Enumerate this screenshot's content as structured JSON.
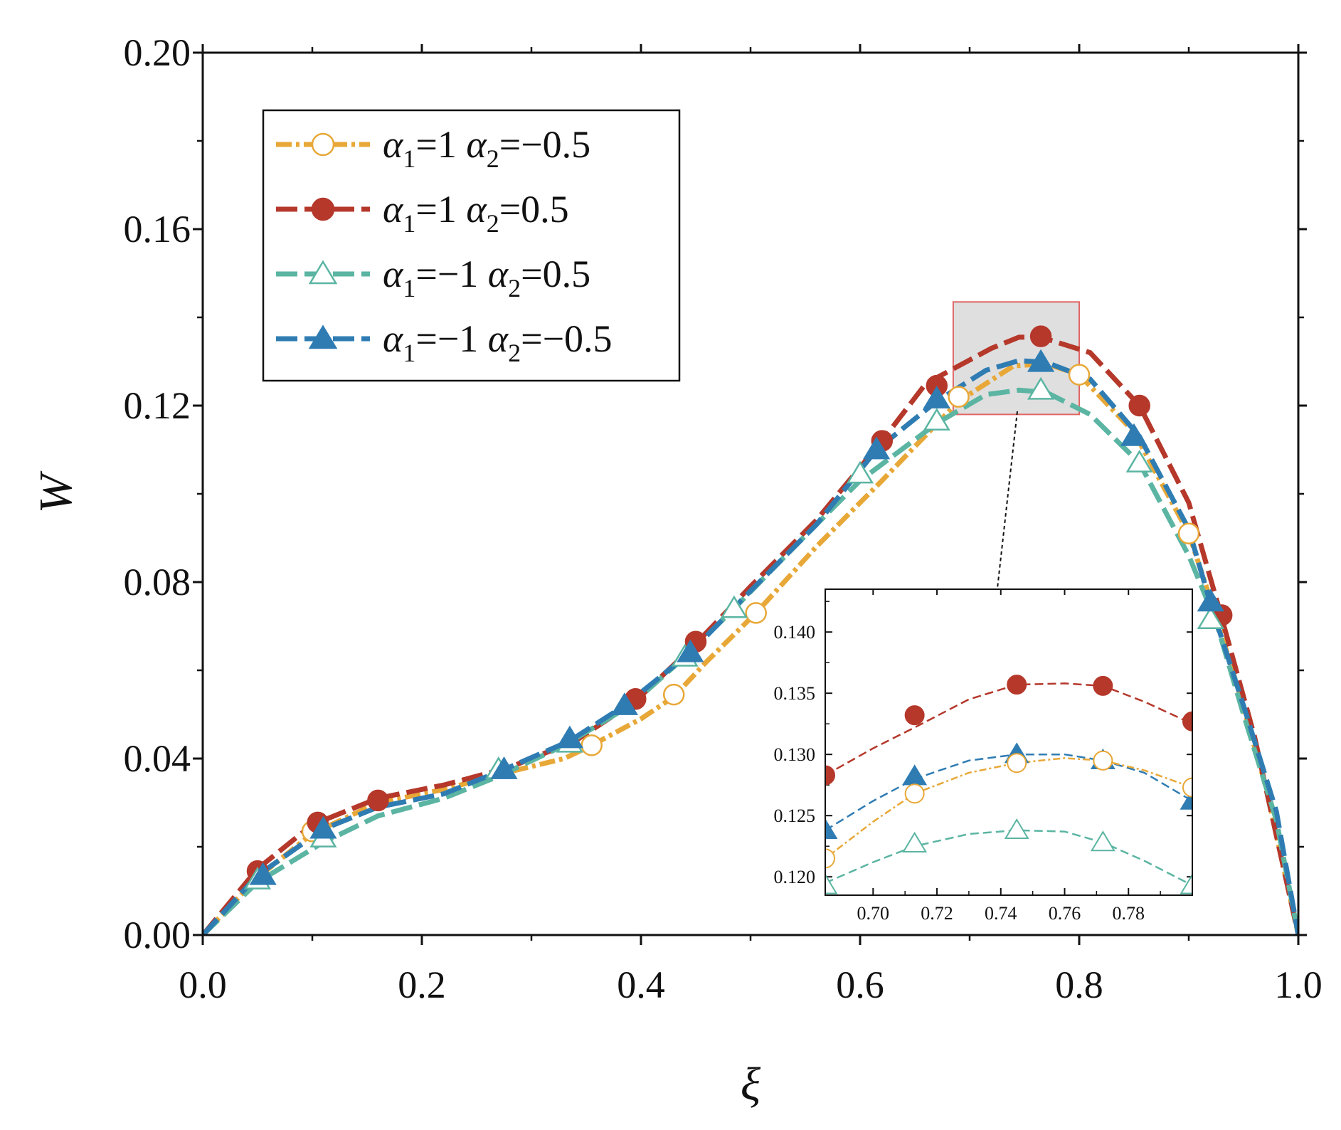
{
  "chart_data": {
    "type": "line",
    "title": "",
    "xlabel": "ξ",
    "ylabel": "W",
    "xlim": [
      0,
      1
    ],
    "ylim": [
      0,
      0.2
    ],
    "x_ticks": [
      "0.0",
      "0.2",
      "0.4",
      "0.6",
      "0.8",
      "1.0"
    ],
    "y_ticks": [
      "0.00",
      "0.04",
      "0.08",
      "0.12",
      "0.16",
      "0.20"
    ],
    "legend_position": "top-left",
    "series": [
      {
        "name": "α1=1 α2=−0.5",
        "legend": {
          "a1": "1",
          "a2": "−0.5"
        },
        "color": "#E8A838",
        "marker": "open-circle",
        "line": [
          [
            0,
            0
          ],
          [
            0.05,
            0.013
          ],
          [
            0.1,
            0.023
          ],
          [
            0.16,
            0.03
          ],
          [
            0.22,
            0.033
          ],
          [
            0.28,
            0.037
          ],
          [
            0.33,
            0.04
          ],
          [
            0.355,
            0.043
          ],
          [
            0.4,
            0.049
          ],
          [
            0.43,
            0.054
          ],
          [
            0.46,
            0.062
          ],
          [
            0.505,
            0.073
          ],
          [
            0.56,
            0.088
          ],
          [
            0.62,
            0.103
          ],
          [
            0.69,
            0.121
          ],
          [
            0.74,
            0.129
          ],
          [
            0.77,
            0.1295
          ],
          [
            0.8,
            0.127
          ],
          [
            0.85,
            0.114
          ],
          [
            0.9,
            0.091
          ],
          [
            0.92,
            0.076
          ],
          [
            0.94,
            0.06
          ],
          [
            0.97,
            0.034
          ],
          [
            1.0,
            0
          ]
        ],
        "markers": [
          [
            0.1,
            0.0235
          ],
          [
            0.355,
            0.043
          ],
          [
            0.43,
            0.0545
          ],
          [
            0.505,
            0.073
          ],
          [
            0.69,
            0.122
          ],
          [
            0.8,
            0.127
          ],
          [
            0.9,
            0.091
          ]
        ]
      },
      {
        "name": "α1=1 α2=0.5",
        "legend": {
          "a1": "1",
          "a2": "0.5"
        },
        "color": "#B5382B",
        "marker": "filled-circle",
        "line": [
          [
            0,
            0
          ],
          [
            0.05,
            0.015
          ],
          [
            0.1,
            0.025
          ],
          [
            0.16,
            0.031
          ],
          [
            0.22,
            0.034
          ],
          [
            0.28,
            0.038
          ],
          [
            0.34,
            0.044
          ],
          [
            0.395,
            0.053
          ],
          [
            0.45,
            0.066
          ],
          [
            0.5,
            0.079
          ],
          [
            0.56,
            0.094
          ],
          [
            0.62,
            0.112
          ],
          [
            0.66,
            0.125
          ],
          [
            0.72,
            0.133
          ],
          [
            0.745,
            0.1355
          ],
          [
            0.765,
            0.1355
          ],
          [
            0.81,
            0.132
          ],
          [
            0.855,
            0.12
          ],
          [
            0.9,
            0.098
          ],
          [
            0.93,
            0.072
          ],
          [
            0.96,
            0.045
          ],
          [
            1.0,
            0
          ]
        ],
        "markers": [
          [
            0.05,
            0.0145
          ],
          [
            0.105,
            0.0255
          ],
          [
            0.16,
            0.0305
          ],
          [
            0.395,
            0.0535
          ],
          [
            0.45,
            0.0665
          ],
          [
            0.62,
            0.112
          ],
          [
            0.67,
            0.1245
          ],
          [
            0.765,
            0.1357
          ],
          [
            0.855,
            0.12
          ],
          [
            0.93,
            0.0725
          ]
        ]
      },
      {
        "name": "α1=−1 α2=0.5",
        "legend": {
          "a1": "−1",
          "a2": "0.5"
        },
        "color": "#5BB5A2",
        "marker": "open-triangle",
        "line": [
          [
            0,
            0
          ],
          [
            0.05,
            0.012
          ],
          [
            0.11,
            0.021
          ],
          [
            0.16,
            0.027
          ],
          [
            0.22,
            0.031
          ],
          [
            0.27,
            0.036
          ],
          [
            0.33,
            0.043
          ],
          [
            0.39,
            0.052
          ],
          [
            0.44,
            0.063
          ],
          [
            0.485,
            0.074
          ],
          [
            0.54,
            0.088
          ],
          [
            0.6,
            0.103
          ],
          [
            0.67,
            0.116
          ],
          [
            0.715,
            0.1225
          ],
          [
            0.745,
            0.1235
          ],
          [
            0.77,
            0.123
          ],
          [
            0.81,
            0.118
          ],
          [
            0.855,
            0.107
          ],
          [
            0.9,
            0.086
          ],
          [
            0.925,
            0.071
          ],
          [
            0.95,
            0.05
          ],
          [
            0.98,
            0.026
          ],
          [
            1.0,
            0
          ]
        ],
        "markers": [
          [
            0.05,
            0.0125
          ],
          [
            0.11,
            0.022
          ],
          [
            0.27,
            0.0375
          ],
          [
            0.335,
            0.0435
          ],
          [
            0.44,
            0.063
          ],
          [
            0.485,
            0.074
          ],
          [
            0.6,
            0.1045
          ],
          [
            0.67,
            0.1165
          ],
          [
            0.765,
            0.1235
          ],
          [
            0.855,
            0.107
          ],
          [
            0.92,
            0.0715
          ]
        ]
      },
      {
        "name": "α1=−1 α2=−0.5",
        "legend": {
          "a1": "−1",
          "a2": "−0.5"
        },
        "color": "#2F7CB3",
        "marker": "filled-triangle",
        "line": [
          [
            0,
            0
          ],
          [
            0.05,
            0.0135
          ],
          [
            0.11,
            0.024
          ],
          [
            0.16,
            0.029
          ],
          [
            0.22,
            0.032
          ],
          [
            0.275,
            0.0375
          ],
          [
            0.335,
            0.044
          ],
          [
            0.385,
            0.052
          ],
          [
            0.445,
            0.064
          ],
          [
            0.5,
            0.078
          ],
          [
            0.56,
            0.093
          ],
          [
            0.615,
            0.11
          ],
          [
            0.67,
            0.121
          ],
          [
            0.715,
            0.128
          ],
          [
            0.745,
            0.1302
          ],
          [
            0.77,
            0.1298
          ],
          [
            0.81,
            0.126
          ],
          [
            0.855,
            0.113
          ],
          [
            0.9,
            0.092
          ],
          [
            0.92,
            0.075
          ],
          [
            0.95,
            0.052
          ],
          [
            0.98,
            0.028
          ],
          [
            1.0,
            0
          ]
        ],
        "markers": [
          [
            0.055,
            0.0135
          ],
          [
            0.11,
            0.024
          ],
          [
            0.275,
            0.0375
          ],
          [
            0.335,
            0.0445
          ],
          [
            0.385,
            0.052
          ],
          [
            0.445,
            0.064
          ],
          [
            0.615,
            0.11
          ],
          [
            0.67,
            0.1215
          ],
          [
            0.765,
            0.1298
          ],
          [
            0.85,
            0.113
          ],
          [
            0.92,
            0.0755
          ]
        ]
      }
    ],
    "zoom_region": {
      "xlim": [
        0.685,
        0.8
      ],
      "ylim": [
        0.118,
        0.1435
      ]
    },
    "inset": {
      "xlim": [
        0.685,
        0.8
      ],
      "ylim": [
        0.1185,
        0.1435
      ],
      "x_ticks": [
        "0.70",
        "0.72",
        "0.74",
        "0.76",
        "0.78"
      ],
      "y_ticks": [
        "0.120",
        "0.125",
        "0.130",
        "0.135",
        "0.140"
      ],
      "series": [
        {
          "name": "α1=1 α2=0.5",
          "color": "#B5382B",
          "marker": "filled-circle",
          "line": [
            [
              0.685,
              0.1283
            ],
            [
              0.7,
              0.1305
            ],
            [
              0.713,
              0.1322
            ],
            [
              0.73,
              0.1345
            ],
            [
              0.745,
              0.1357
            ],
            [
              0.76,
              0.1358
            ],
            [
              0.772,
              0.1356
            ],
            [
              0.785,
              0.1343
            ],
            [
              0.8,
              0.1325
            ]
          ],
          "markers": [
            [
              0.685,
              0.1283
            ],
            [
              0.713,
              0.1332
            ],
            [
              0.745,
              0.1357
            ],
            [
              0.772,
              0.1356
            ],
            [
              0.8,
              0.1327
            ]
          ]
        },
        {
          "name": "α1=−1 α2=−0.5",
          "color": "#2F7CB3",
          "marker": "filled-triangle",
          "line": [
            [
              0.685,
              0.1238
            ],
            [
              0.7,
              0.1262
            ],
            [
              0.713,
              0.128
            ],
            [
              0.73,
              0.1295
            ],
            [
              0.745,
              0.13
            ],
            [
              0.76,
              0.13
            ],
            [
              0.772,
              0.1295
            ],
            [
              0.785,
              0.1285
            ],
            [
              0.8,
              0.1262
            ]
          ],
          "markers": [
            [
              0.685,
              0.1238
            ],
            [
              0.713,
              0.1282
            ],
            [
              0.745,
              0.13
            ],
            [
              0.772,
              0.1295
            ],
            [
              0.8,
              0.1262
            ]
          ]
        },
        {
          "name": "α1=1 α2=−0.5",
          "color": "#E8A838",
          "marker": "open-circle",
          "line": [
            [
              0.685,
              0.1215
            ],
            [
              0.7,
              0.1245
            ],
            [
              0.713,
              0.1268
            ],
            [
              0.73,
              0.1285
            ],
            [
              0.745,
              0.1293
            ],
            [
              0.76,
              0.1297
            ],
            [
              0.772,
              0.1295
            ],
            [
              0.785,
              0.1287
            ],
            [
              0.8,
              0.1273
            ]
          ],
          "markers": [
            [
              0.685,
              0.1215
            ],
            [
              0.713,
              0.1268
            ],
            [
              0.745,
              0.1293
            ],
            [
              0.772,
              0.1295
            ],
            [
              0.8,
              0.1273
            ]
          ]
        },
        {
          "name": "α1=−1 α2=0.5",
          "color": "#5BB5A2",
          "marker": "open-triangle",
          "line": [
            [
              0.685,
              0.1195
            ],
            [
              0.7,
              0.1212
            ],
            [
              0.713,
              0.1225
            ],
            [
              0.73,
              0.1235
            ],
            [
              0.745,
              0.1238
            ],
            [
              0.76,
              0.1237
            ],
            [
              0.772,
              0.1228
            ],
            [
              0.785,
              0.1213
            ],
            [
              0.8,
              0.1193
            ]
          ],
          "markers": [
            [
              0.685,
              0.1193
            ],
            [
              0.713,
              0.1227
            ],
            [
              0.745,
              0.1238
            ],
            [
              0.772,
              0.1228
            ],
            [
              0.8,
              0.1193
            ]
          ]
        }
      ]
    }
  }
}
